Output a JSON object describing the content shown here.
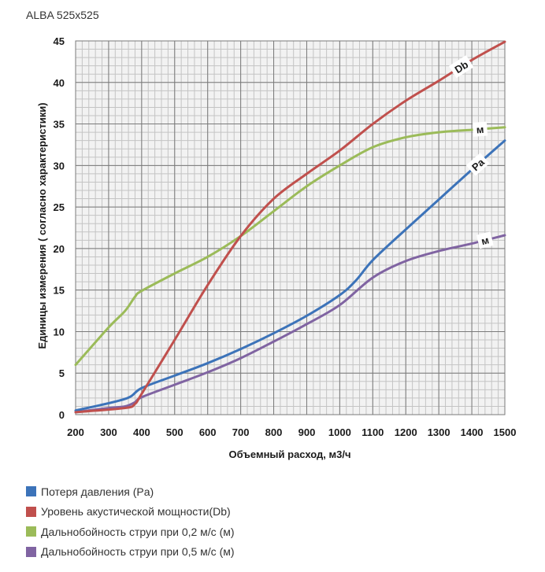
{
  "chart_data": {
    "type": "line",
    "title": "ALBA 525x525",
    "xlabel": "Объемный расход, м3/ч",
    "ylabel": "Единицы измерения ( согласно характеристики)",
    "xlim": [
      200,
      1500
    ],
    "ylim": [
      0,
      45
    ],
    "grid": true,
    "legend_position": "bottom",
    "x_ticks": [
      "200",
      "300",
      "400",
      "500",
      "600",
      "700",
      "800",
      "900",
      "1000",
      "1100",
      "1200",
      "1300",
      "1400",
      "1500"
    ],
    "y_ticks": [
      "0",
      "5",
      "10",
      "15",
      "20",
      "25",
      "30",
      "35",
      "40",
      "45"
    ],
    "series": [
      {
        "name": "Потеря давления (Pa)",
        "color": "#3C73B9",
        "annotation": "Pa",
        "x": [
          200,
          350,
          400,
          500,
          600,
          700,
          800,
          900,
          1000,
          1050,
          1100,
          1200,
          1300,
          1400,
          1500
        ],
        "y": [
          0.5,
          1.9,
          3.2,
          4.7,
          6.2,
          7.9,
          9.8,
          11.9,
          14.4,
          16.2,
          18.6,
          22.3,
          25.9,
          29.5,
          33.0
        ]
      },
      {
        "name": "Уровень акустической мощности(Db)",
        "color": "#C0504D",
        "annotation": "Db",
        "x": [
          200,
          350,
          380,
          400,
          500,
          600,
          700,
          800,
          900,
          1000,
          1100,
          1200,
          1300,
          1400,
          1500
        ],
        "y": [
          0.3,
          0.8,
          1.3,
          2.5,
          9.0,
          15.6,
          21.5,
          26.0,
          29.0,
          31.8,
          35.0,
          37.8,
          40.2,
          42.7,
          44.9
        ]
      },
      {
        "name": "Дальнобойность струи при 0,2 м/с (м)",
        "color": "#9BBB59",
        "annotation": "м",
        "x": [
          200,
          300,
          350,
          380,
          400,
          500,
          600,
          700,
          800,
          900,
          1000,
          1100,
          1200,
          1300,
          1400,
          1500
        ],
        "y": [
          6.0,
          10.5,
          12.5,
          14.2,
          14.9,
          17.0,
          19.0,
          21.5,
          24.5,
          27.5,
          30.0,
          32.2,
          33.4,
          34.0,
          34.3,
          34.6
        ]
      },
      {
        "name": "Дальнобойность струи при 0,5 м/с (м)",
        "color": "#8064A2",
        "annotation": "м",
        "x": [
          200,
          300,
          350,
          380,
          400,
          500,
          600,
          700,
          800,
          900,
          1000,
          1100,
          1200,
          1300,
          1400,
          1500
        ],
        "y": [
          0.3,
          0.8,
          1.0,
          1.5,
          2.1,
          3.6,
          5.1,
          6.8,
          8.8,
          10.9,
          13.2,
          16.5,
          18.5,
          19.7,
          20.6,
          21.6
        ]
      }
    ]
  }
}
